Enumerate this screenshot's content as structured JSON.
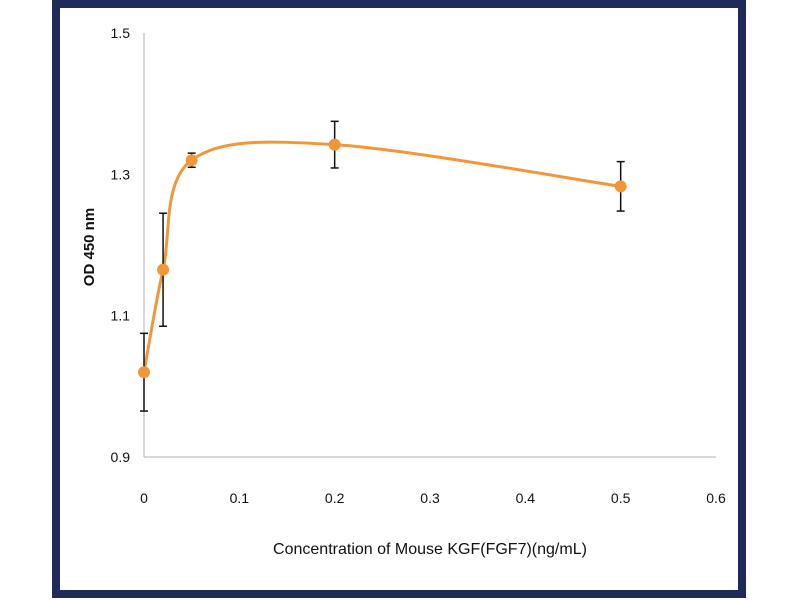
{
  "chart_data": {
    "type": "line",
    "title": "",
    "xlabel": "Concentration of Mouse KGF(FGF7)(ng/mL)",
    "ylabel": "OD 450 nm",
    "xlim": [
      0,
      0.6
    ],
    "ylim": [
      0.9,
      1.5
    ],
    "x_ticks": [
      "0",
      "0.1",
      "0.2",
      "0.3",
      "0.4",
      "0.5",
      "0.6"
    ],
    "y_ticks": [
      "0.9",
      "1.1",
      "1.3",
      "1.5"
    ],
    "grid": false,
    "smooth": true,
    "series": [
      {
        "x": [
          0,
          0.02,
          0.05,
          0.2,
          0.5
        ],
        "y": [
          1.02,
          1.165,
          1.32,
          1.342,
          1.283
        ],
        "err": [
          0.055,
          0.08,
          0.01,
          0.033,
          0.035
        ],
        "color": "#f0973a"
      }
    ]
  }
}
